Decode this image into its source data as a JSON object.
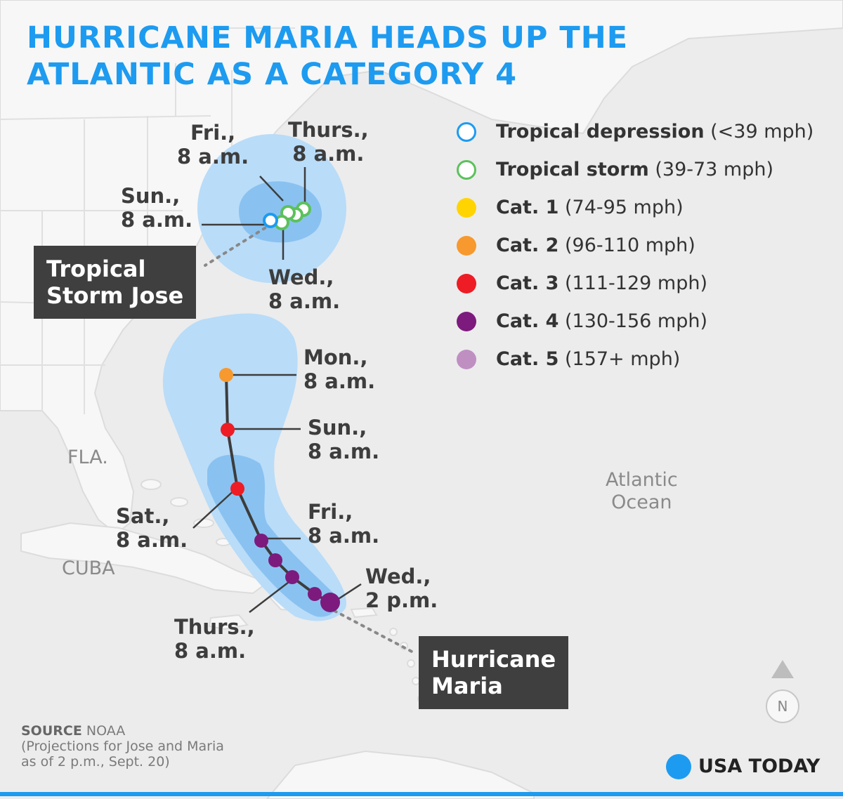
{
  "title": {
    "line1": "HURRICANE MARIA HEADS UP THE",
    "line2": "ATLANTIC AS A CATEGORY 4"
  },
  "colors": {
    "accent": "#1d9bf0",
    "land": "#f7f7f7",
    "water": "#ececec",
    "cone_outer": "#b9dcf8",
    "cone_inner": "#89c2f1",
    "track": "#3d3d3d",
    "label_box": "#3f3f3f"
  },
  "legend": [
    {
      "name": "Tropical depression",
      "range": "(<39 mph)",
      "color": "#1d9bf0",
      "style": "ring"
    },
    {
      "name": "Tropical storm",
      "range": "(39-73 mph)",
      "color": "#5cc15c",
      "style": "ring"
    },
    {
      "name": "Cat. 1",
      "range": "(74-95 mph)",
      "color": "#ffd400",
      "style": "fill"
    },
    {
      "name": "Cat. 2",
      "range": "(96-110 mph)",
      "color": "#f7992e",
      "style": "fill"
    },
    {
      "name": "Cat. 3",
      "range": "(111-129 mph)",
      "color": "#ee1c24",
      "style": "fill"
    },
    {
      "name": "Cat. 4",
      "range": "(130-156 mph)",
      "color": "#7d1a7d",
      "style": "fill"
    },
    {
      "name": "Cat. 5",
      "range": "(157+ mph)",
      "color": "#bf8fc2",
      "style": "fill"
    }
  ],
  "storms": {
    "jose": {
      "line1": "Tropical",
      "line2": "Storm Jose"
    },
    "maria": {
      "line1": "Hurricane",
      "line2": "Maria"
    }
  },
  "jose_labels": {
    "fri": {
      "day": "Fri.,",
      "time": "8 a.m."
    },
    "thurs": {
      "day": "Thurs.,",
      "time": "8 a.m."
    },
    "sun": {
      "day": "Sun.,",
      "time": "8 a.m."
    },
    "wed": {
      "day": "Wed.,",
      "time": "8 a.m."
    }
  },
  "maria_labels": {
    "mon": {
      "day": "Mon.,",
      "time": "8 a.m."
    },
    "sun": {
      "day": "Sun.,",
      "time": "8 a.m."
    },
    "sat": {
      "day": "Sat.,",
      "time": "8 a.m."
    },
    "fri": {
      "day": "Fri.,",
      "time": "8 a.m."
    },
    "wed": {
      "day": "Wed.,",
      "time": "2 p.m."
    },
    "thurs": {
      "day": "Thurs.,",
      "time": "8 a.m."
    }
  },
  "geography": {
    "fla": "FLA.",
    "cuba": "CUBA",
    "ocean_line1": "Atlantic",
    "ocean_line2": "Ocean"
  },
  "compass": {
    "north": "N"
  },
  "source": {
    "label": "SOURCE",
    "agency": "NOAA",
    "note_line1": "(Projections for Jose and Maria",
    "note_line2": "as of 2 p.m., Sept. 20)"
  },
  "brand": {
    "name": "USA TODAY"
  }
}
